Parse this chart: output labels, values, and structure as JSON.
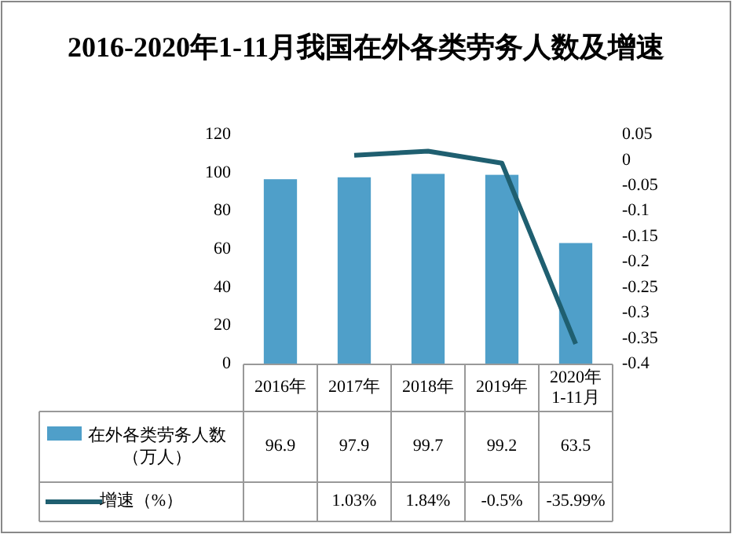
{
  "chart_data": {
    "type": "bar",
    "title": "2016-2020年1-11月我国在外各类劳务人数及增速",
    "categories": [
      "2016年",
      "2017年",
      "2018年",
      "2019年",
      "2020年1-11月"
    ],
    "series": [
      {
        "name": "在外各类劳务人数（万人）",
        "color": "#4f9fc9",
        "values": [
          96.9,
          97.9,
          99.7,
          99.2,
          63.5
        ],
        "value_labels": [
          "96.9",
          "97.9",
          "99.7",
          "99.2",
          "63.5"
        ]
      },
      {
        "name": "增速（%）",
        "type": "line",
        "axis": "y2",
        "color": "#1f5f70",
        "values": [
          null,
          0.0103,
          0.0184,
          -0.005,
          -0.3599
        ],
        "value_labels": [
          null,
          "1.03%",
          "1.84%",
          "-0.5%",
          "-35.99%"
        ]
      }
    ],
    "ylim": [
      0,
      120
    ],
    "yticks": [
      0,
      20,
      40,
      60,
      80,
      100,
      120
    ],
    "y2lim": [
      -0.4,
      0.05
    ],
    "y2ticks": [
      0.05,
      0,
      -0.05,
      -0.1,
      -0.15,
      -0.2,
      -0.25,
      -0.3,
      -0.35,
      -0.4
    ],
    "grid": false,
    "legend": "bottom"
  }
}
